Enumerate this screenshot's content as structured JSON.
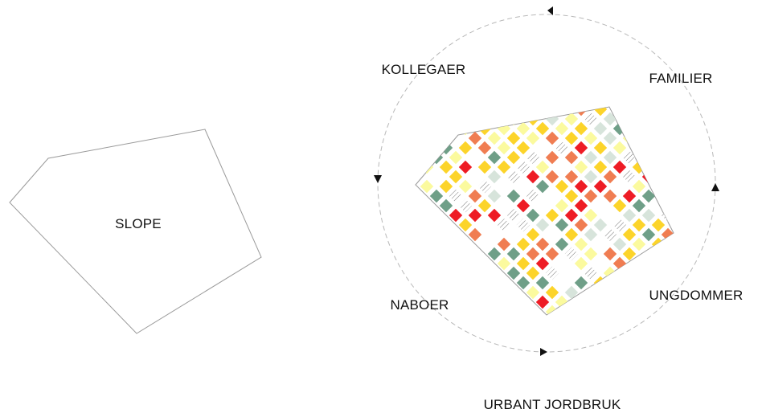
{
  "labels": {
    "slope": "SLOPE",
    "kollegaer": "KOLLEGAER",
    "familier": "FAMILIER",
    "naboer": "NABOER",
    "ungdommer": "UNGDOMMER",
    "urbant_jordbruk": "URBANT JORDBRUK"
  },
  "colors": {
    "outline": "#9a9a9a",
    "dashed_circle": "#b8b8b8",
    "arrow": "#111111",
    "tile_red": "#ee1c25",
    "tile_orange": "#f07d52",
    "tile_yellow": "#fcd42a",
    "tile_pale_yellow": "#fbfa9e",
    "tile_teal": "#6f9f88",
    "tile_pale_green": "#d7e4db",
    "tile_hatched": "#555555"
  }
}
